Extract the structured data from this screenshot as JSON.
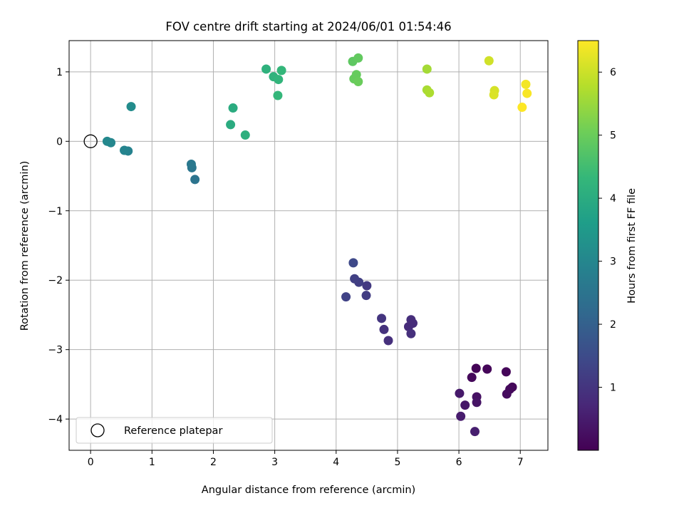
{
  "chart_data": {
    "type": "scatter",
    "title": "FOV centre drift starting at 2024/06/01 01:54:46",
    "xlabel": "Angular distance from reference (arcmin)",
    "ylabel": "Rotation from reference (arcmin)",
    "xlim": [
      -0.35,
      7.45
    ],
    "ylim": [
      -4.45,
      1.45
    ],
    "xticks": [
      0,
      1,
      2,
      3,
      4,
      5,
      6,
      7
    ],
    "xtick_labels": [
      "0",
      "1",
      "2",
      "3",
      "4",
      "5",
      "6",
      "7"
    ],
    "yticks": [
      1,
      0,
      -1,
      -2,
      -3,
      -4
    ],
    "ytick_labels": [
      "1",
      "0",
      "−1",
      "−2",
      "−3",
      "−4"
    ],
    "grid": true,
    "legend": {
      "entries": [
        "Reference platepar"
      ],
      "placement": "lower-left"
    },
    "reference_point": {
      "x": 0,
      "y": 0,
      "marker": "open-circle"
    },
    "colorbar": {
      "label": "Hours from first FF file",
      "range": [
        0,
        6.5
      ],
      "ticks": [
        1,
        2,
        3,
        4,
        5,
        6
      ],
      "tick_labels": [
        "1",
        "2",
        "3",
        "4",
        "5",
        "6"
      ],
      "colormap": "viridis",
      "colormap_stops": [
        "#440154",
        "#482878",
        "#3e4989",
        "#31688e",
        "#26828e",
        "#1f9e89",
        "#35b779",
        "#6ece58",
        "#b5de2b",
        "#fde725"
      ]
    },
    "series": [
      {
        "points": [
          {
            "x": 6.28,
            "y": -3.27,
            "hours": 0.05
          },
          {
            "x": 6.46,
            "y": -3.28,
            "hours": 0.1
          },
          {
            "x": 6.21,
            "y": -3.4,
            "hours": 0.15
          },
          {
            "x": 6.77,
            "y": -3.32,
            "hours": 0.1
          },
          {
            "x": 6.87,
            "y": -3.54,
            "hours": 0.12
          },
          {
            "x": 6.83,
            "y": -3.57,
            "hours": 0.15
          },
          {
            "x": 6.78,
            "y": -3.64,
            "hours": 0.2
          },
          {
            "x": 6.29,
            "y": -3.68,
            "hours": 0.3
          },
          {
            "x": 6.29,
            "y": -3.76,
            "hours": 0.35
          },
          {
            "x": 6.1,
            "y": -3.8,
            "hours": 0.4
          },
          {
            "x": 6.01,
            "y": -3.63,
            "hours": 0.45
          },
          {
            "x": 6.03,
            "y": -3.96,
            "hours": 0.5
          },
          {
            "x": 6.26,
            "y": -4.18,
            "hours": 0.55
          },
          {
            "x": 5.18,
            "y": -2.67,
            "hours": 0.8
          },
          {
            "x": 5.22,
            "y": -2.57,
            "hours": 0.85
          },
          {
            "x": 5.25,
            "y": -2.62,
            "hours": 0.8
          },
          {
            "x": 5.22,
            "y": -2.77,
            "hours": 0.9
          },
          {
            "x": 4.85,
            "y": -2.87,
            "hours": 0.9
          },
          {
            "x": 4.78,
            "y": -2.71,
            "hours": 0.95
          },
          {
            "x": 4.74,
            "y": -2.55,
            "hours": 1.0
          },
          {
            "x": 4.5,
            "y": -2.08,
            "hours": 1.1
          },
          {
            "x": 4.49,
            "y": -2.22,
            "hours": 1.15
          },
          {
            "x": 4.37,
            "y": -2.03,
            "hours": 1.2
          },
          {
            "x": 4.3,
            "y": -1.98,
            "hours": 1.25
          },
          {
            "x": 4.16,
            "y": -2.24,
            "hours": 1.3
          },
          {
            "x": 4.28,
            "y": -1.75,
            "hours": 1.45
          },
          {
            "x": 1.7,
            "y": -0.55,
            "hours": 2.5
          },
          {
            "x": 1.65,
            "y": -0.38,
            "hours": 2.55
          },
          {
            "x": 1.64,
            "y": -0.33,
            "hours": 2.6
          },
          {
            "x": 0.61,
            "y": -0.14,
            "hours": 2.9
          },
          {
            "x": 0.55,
            "y": -0.13,
            "hours": 2.95
          },
          {
            "x": 0.33,
            "y": -0.02,
            "hours": 3.0
          },
          {
            "x": 0.27,
            "y": 0.0,
            "hours": 3.05
          },
          {
            "x": 0.66,
            "y": 0.5,
            "hours": 3.15
          },
          {
            "x": 2.28,
            "y": 0.24,
            "hours": 4.0
          },
          {
            "x": 2.52,
            "y": 0.09,
            "hours": 4.1
          },
          {
            "x": 2.32,
            "y": 0.48,
            "hours": 4.0
          },
          {
            "x": 2.86,
            "y": 1.04,
            "hours": 4.15
          },
          {
            "x": 2.98,
            "y": 0.93,
            "hours": 4.2
          },
          {
            "x": 3.06,
            "y": 0.89,
            "hours": 4.25
          },
          {
            "x": 3.05,
            "y": 0.66,
            "hours": 4.3
          },
          {
            "x": 3.11,
            "y": 1.02,
            "hours": 4.3
          },
          {
            "x": 4.27,
            "y": 1.15,
            "hours": 4.85
          },
          {
            "x": 4.36,
            "y": 1.2,
            "hours": 4.9
          },
          {
            "x": 4.29,
            "y": 0.9,
            "hours": 4.95
          },
          {
            "x": 4.33,
            "y": 0.96,
            "hours": 4.95
          },
          {
            "x": 4.36,
            "y": 0.86,
            "hours": 5.0
          },
          {
            "x": 5.48,
            "y": 1.04,
            "hours": 5.6
          },
          {
            "x": 5.48,
            "y": 0.74,
            "hours": 5.65
          },
          {
            "x": 5.52,
            "y": 0.7,
            "hours": 5.7
          },
          {
            "x": 6.49,
            "y": 1.16,
            "hours": 6.05
          },
          {
            "x": 6.58,
            "y": 0.73,
            "hours": 6.1
          },
          {
            "x": 6.57,
            "y": 0.67,
            "hours": 6.15
          },
          {
            "x": 7.09,
            "y": 0.82,
            "hours": 6.4
          },
          {
            "x": 7.11,
            "y": 0.69,
            "hours": 6.45
          },
          {
            "x": 7.03,
            "y": 0.49,
            "hours": 6.5
          }
        ]
      }
    ]
  }
}
